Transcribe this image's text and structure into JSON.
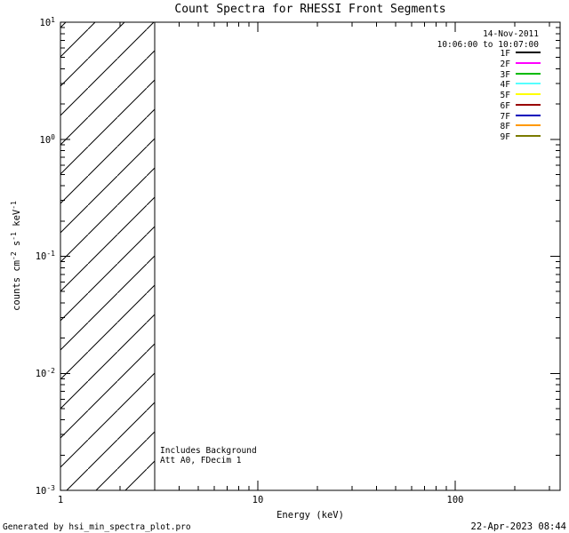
{
  "colors": {
    "background": "#ffffff",
    "foreground": "#000000"
  },
  "footer": {
    "generated_by": "Generated by hsi_min_spectra_plot.pro",
    "timestamp": "22-Apr-2023 08:44"
  },
  "chart_data": {
    "type": "line",
    "title": "Count Spectra for RHESSI Front Segments",
    "xlabel": "Energy (keV)",
    "ylabel": "counts cm^-2 s^-1 keV^-1",
    "ylabel_parts": {
      "t1": "counts cm",
      "e1": "-2",
      "t2": " s",
      "e2": "-1",
      "t3": " keV",
      "e3": "-1"
    },
    "x_scale": "log",
    "y_scale": "log",
    "x_range": [
      1,
      340
    ],
    "y_range": [
      0.001,
      10
    ],
    "x_ticks": [
      "1",
      "10",
      "100"
    ],
    "y_ticks": [
      {
        "base": "10",
        "exp": "1"
      },
      {
        "base": "10",
        "exp": "0"
      },
      {
        "base": "10",
        "exp": "-1"
      },
      {
        "base": "10",
        "exp": "-2"
      },
      {
        "base": "10",
        "exp": "-3"
      }
    ],
    "grid": false,
    "legend_position": "top-right-inside",
    "legend_header": {
      "date": "14-Nov-2011",
      "time_range": "10:06:00 to 10:07:00"
    },
    "legend_entries": [
      {
        "label": "1F",
        "color": "#000000"
      },
      {
        "label": "2F",
        "color": "#ff00ff"
      },
      {
        "label": "3F",
        "color": "#00bb00"
      },
      {
        "label": "4F",
        "color": "#55ffff"
      },
      {
        "label": "5F",
        "color": "#ffff00"
      },
      {
        "label": "6F",
        "color": "#990000"
      },
      {
        "label": "7F",
        "color": "#0000bb"
      },
      {
        "label": "8F",
        "color": "#ff9900"
      },
      {
        "label": "9F",
        "color": "#7a7a00"
      }
    ],
    "series": [],
    "hatched_region": {
      "x_from": 1,
      "x_to": 3,
      "style": "diagonal-hatch"
    },
    "notes": [
      "Includes Background",
      "Att A0, FDecim 1"
    ]
  }
}
